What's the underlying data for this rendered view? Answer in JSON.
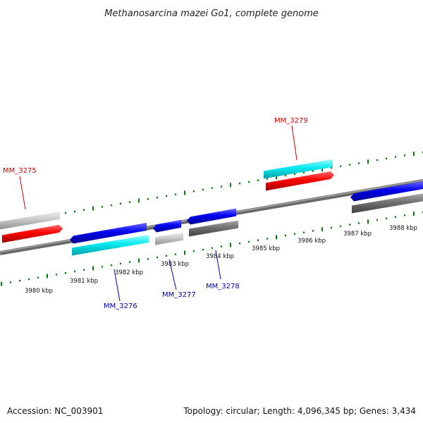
{
  "title": "Methanosarcina mazei Go1, complete genome",
  "accession": "Accession: NC_003901",
  "summary": "Topology: circular; Length: 4,096,345 bp; Genes: 3,434",
  "ticks": [
    "3980 kbp",
    "3981 kbp",
    "3982 kbp",
    "3983 kbp",
    "3984 kbp",
    "3985 kbp",
    "3986 kbp",
    "3987 kbp",
    "3988 kbp"
  ],
  "gene_labels": [
    {
      "id": "MM_3275",
      "color": "#d40000"
    },
    {
      "id": "MM_3279",
      "color": "#d40000"
    },
    {
      "id": "MM_3276",
      "color": "#0000b4"
    },
    {
      "id": "MM_3277",
      "color": "#0000b4"
    },
    {
      "id": "MM_3278",
      "color": "#0000b4"
    }
  ],
  "colors": {
    "backbone": "#888888",
    "forward_cds": "#ff0000",
    "reverse_cds": "#0000ee",
    "rna_or_match": "#00e5ee",
    "pseudo_light": "#c8c8c8",
    "pseudo_dark": "#707070",
    "tick": "#008000"
  }
}
